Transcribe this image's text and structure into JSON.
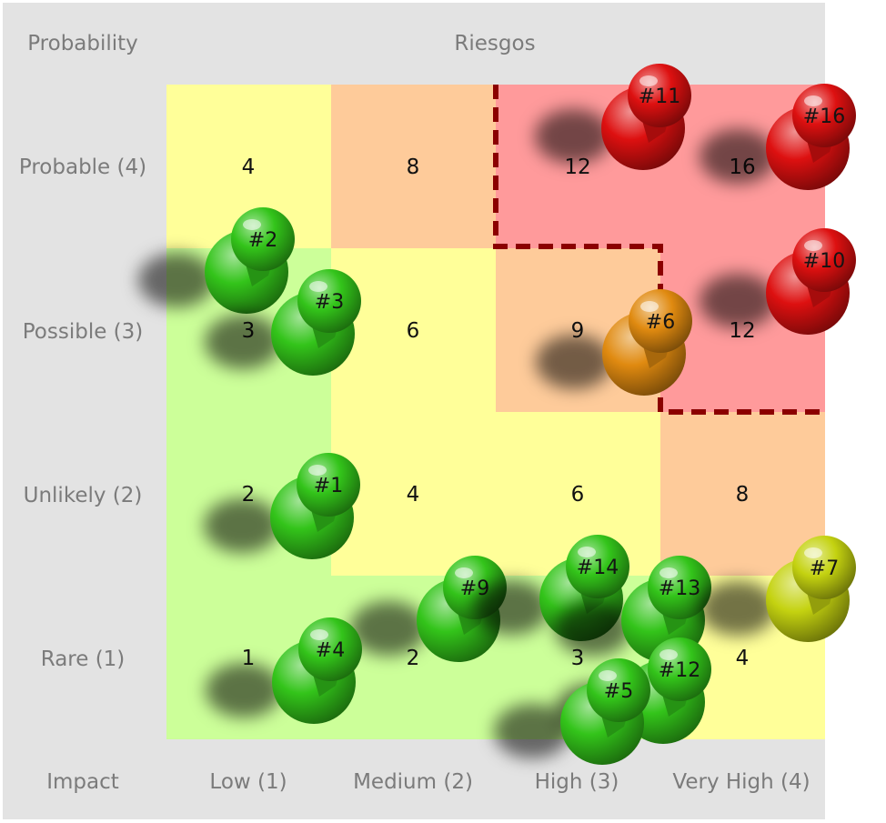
{
  "header": {
    "probability_label": "Probability",
    "title": "Riesgos",
    "impact_label": "Impact"
  },
  "rows": [
    "Probable (4)",
    "Possible (3)",
    "Unlikely (2)",
    "Rare (1)"
  ],
  "columns": [
    "Low (1)",
    "Medium (2)",
    "High (3)",
    "Very High (4)"
  ],
  "zone_colors": {
    "low": "#ccff99",
    "moderate": "#ffff99",
    "high": "#fecb9a",
    "extreme": "#ff9a9b",
    "critical_outline": "#8b0000"
  },
  "matrix": [
    {
      "score": "4",
      "zone": "moderate"
    },
    {
      "score": "8",
      "zone": "high"
    },
    {
      "score": "12",
      "zone": "extreme"
    },
    {
      "score": "16",
      "zone": "extreme"
    },
    {
      "score": "3",
      "zone": "low"
    },
    {
      "score": "6",
      "zone": "moderate"
    },
    {
      "score": "9",
      "zone": "high"
    },
    {
      "score": "12",
      "zone": "extreme"
    },
    {
      "score": "2",
      "zone": "low"
    },
    {
      "score": "4",
      "zone": "moderate"
    },
    {
      "score": "6",
      "zone": "moderate"
    },
    {
      "score": "8",
      "zone": "high"
    },
    {
      "score": "1",
      "zone": "low"
    },
    {
      "score": "2",
      "zone": "low"
    },
    {
      "score": "3",
      "zone": "low"
    },
    {
      "score": "4",
      "zone": "moderate"
    }
  ],
  "pin_colors": {
    "green": "#33c41a",
    "orange": "#e08a10",
    "red": "#dd1010",
    "yellow": "#c4d210"
  },
  "pins": [
    {
      "label": "#11",
      "color": "red"
    },
    {
      "label": "#16",
      "color": "red"
    },
    {
      "label": "#2",
      "color": "green"
    },
    {
      "label": "#10",
      "color": "red"
    },
    {
      "label": "#3",
      "color": "green"
    },
    {
      "label": "#6",
      "color": "orange"
    },
    {
      "label": "#1",
      "color": "green"
    },
    {
      "label": "#9",
      "color": "green"
    },
    {
      "label": "#14",
      "color": "green"
    },
    {
      "label": "#13",
      "color": "green"
    },
    {
      "label": "#7",
      "color": "yellow"
    },
    {
      "label": "#4",
      "color": "green"
    },
    {
      "label": "#12",
      "color": "green"
    },
    {
      "label": "#5",
      "color": "green"
    }
  ]
}
